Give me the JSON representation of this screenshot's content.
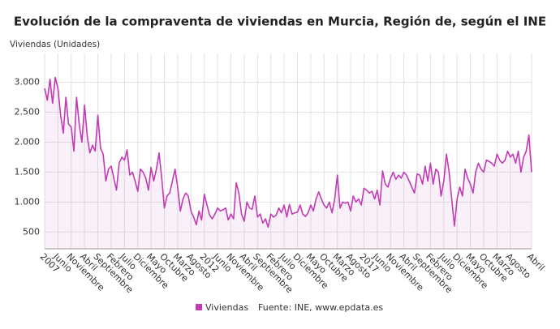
{
  "chart_data": {
    "type": "line",
    "title": "Evolución de la compraventa de viviendas en Murcia, Región de, según el INE",
    "y_axis_label": "Viviendas (Unidades)",
    "source": "Fuente: INE, www.epdata.es",
    "categories": [
      "2007",
      null,
      null,
      null,
      null,
      "Junio",
      null,
      null,
      null,
      null,
      "Noviembre",
      null,
      null,
      null,
      null,
      "Abril",
      null,
      null,
      null,
      null,
      "Septiembre",
      null,
      null,
      null,
      null,
      "Febrero",
      null,
      null,
      null,
      null,
      "Julio",
      null,
      null,
      null,
      null,
      "Diciembre",
      null,
      null,
      null,
      null,
      "Mayo",
      null,
      null,
      null,
      null,
      "Octubre",
      null,
      null,
      null,
      null,
      "Marzo",
      null,
      null,
      null,
      null,
      "Agosto",
      null,
      null,
      null,
      null,
      "2012",
      null,
      null,
      null,
      null,
      "Junio",
      null,
      null,
      null,
      null,
      "Noviembre",
      null,
      null,
      null,
      null,
      "Abril",
      null,
      null,
      null,
      null,
      "Septiembre",
      null,
      null,
      null,
      null,
      "Febrero",
      null,
      null,
      null,
      null,
      "Julio",
      null,
      null,
      null,
      null,
      "Diciembre",
      null,
      null,
      null,
      null,
      "Mayo",
      null,
      null,
      null,
      null,
      "Octubre",
      null,
      null,
      null,
      null,
      "Marzo",
      null,
      null,
      null,
      null,
      "Agosto",
      null,
      null,
      null,
      null,
      "2017",
      null,
      null,
      null,
      null,
      "Junio",
      null,
      null,
      null,
      null,
      "Noviembre",
      null,
      null,
      null,
      null,
      "Abril",
      null,
      null,
      null,
      null,
      "Septiembre",
      null,
      null,
      null,
      null,
      "Febrero",
      null,
      null,
      null,
      null,
      "Julio",
      null,
      null,
      null,
      null,
      "Diciembre",
      null,
      null,
      null,
      null,
      "Mayo",
      null,
      null,
      null,
      null,
      "Octubre",
      null,
      null,
      null,
      null,
      "Marzo",
      null,
      null,
      null,
      null,
      "Agosto",
      null,
      null,
      null,
      null,
      null,
      null,
      null,
      "Abril"
    ],
    "series": [
      {
        "name": "Viviendas",
        "color": "#c13cb4",
        "values": [
          2900,
          2700,
          3050,
          2650,
          3080,
          2900,
          2450,
          2150,
          2750,
          2300,
          2250,
          1850,
          2750,
          2300,
          2000,
          2620,
          2100,
          1820,
          1950,
          1850,
          2450,
          1900,
          1800,
          1350,
          1550,
          1600,
          1400,
          1200,
          1650,
          1750,
          1700,
          1870,
          1450,
          1500,
          1350,
          1180,
          1550,
          1500,
          1400,
          1200,
          1580,
          1350,
          1550,
          1820,
          1400,
          900,
          1100,
          1150,
          1350,
          1550,
          1250,
          850,
          1050,
          1150,
          1100,
          850,
          750,
          620,
          850,
          700,
          1130,
          950,
          780,
          720,
          800,
          900,
          850,
          870,
          900,
          700,
          800,
          720,
          1320,
          1150,
          800,
          680,
          1000,
          900,
          880,
          1100,
          750,
          800,
          650,
          720,
          580,
          800,
          750,
          780,
          900,
          820,
          950,
          750,
          960,
          800,
          820,
          830,
          950,
          800,
          760,
          820,
          950,
          850,
          1050,
          1170,
          1050,
          950,
          900,
          1000,
          820,
          1050,
          1450,
          900,
          1000,
          980,
          1000,
          850,
          1100,
          1000,
          1050,
          950,
          1230,
          1200,
          1150,
          1180,
          1050,
          1200,
          950,
          1520,
          1300,
          1250,
          1400,
          1500,
          1380,
          1450,
          1400,
          1500,
          1450,
          1350,
          1250,
          1150,
          1470,
          1450,
          1300,
          1600,
          1350,
          1650,
          1300,
          1550,
          1500,
          1100,
          1350,
          1800,
          1500,
          1050,
          600,
          1050,
          1250,
          1100,
          1550,
          1400,
          1300,
          1150,
          1500,
          1650,
          1550,
          1500,
          1700,
          1680,
          1650,
          1600,
          1800,
          1700,
          1650,
          1700,
          1850,
          1750,
          1800,
          1650,
          1850,
          1500,
          1750,
          1850,
          2120,
          1500
        ]
      }
    ],
    "ylim": [
      220,
      3480
    ],
    "yticks": [
      {
        "value": 500,
        "label": "500"
      },
      {
        "value": 1000,
        "label": "1.000"
      },
      {
        "value": 1500,
        "label": "1.500"
      },
      {
        "value": 2000,
        "label": "2.000"
      },
      {
        "value": 2500,
        "label": "2.500"
      },
      {
        "value": 3000,
        "label": "3.000"
      }
    ],
    "grid": true
  }
}
